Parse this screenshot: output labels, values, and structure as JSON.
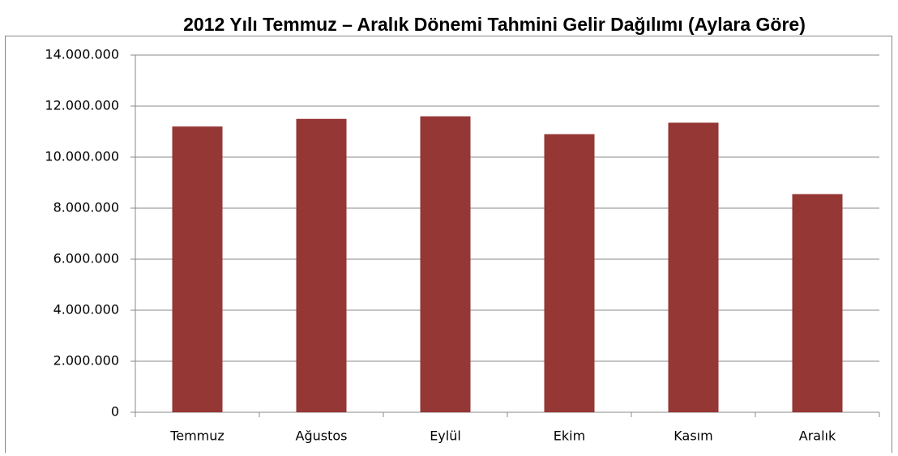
{
  "chart_data": {
    "type": "bar",
    "title": "2012 Yılı Temmuz – Aralık Dönemi  Tahmini Gelir Dağılımı (Aylara Göre)",
    "categories": [
      "Temmuz",
      "Ağustos",
      "Eylül",
      "Ekim",
      "Kasım",
      "Aralık"
    ],
    "values": [
      11200000,
      11500000,
      11600000,
      10900000,
      11350000,
      8550000
    ],
    "color": "#953735",
    "ylim": [
      0,
      14000000
    ],
    "yticks": [
      0,
      {
        "value": 2000000,
        "label": "2.000.000"
      },
      {
        "value": 4000000,
        "label": "4.000.000"
      },
      {
        "value": 6000000,
        "label": "6.000.000"
      },
      {
        "value": 8000000,
        "label": "8.000.000"
      },
      {
        "value": 10000000,
        "label": "10.000.000"
      },
      {
        "value": 12000000,
        "label": "12.000.000"
      },
      {
        "value": 14000000,
        "label": "14.000.000"
      }
    ],
    "grid": true
  }
}
